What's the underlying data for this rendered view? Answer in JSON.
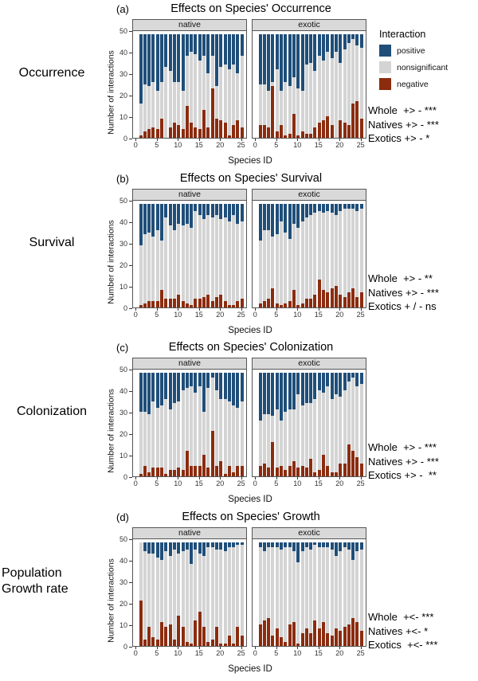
{
  "figure": {
    "facet_labels": [
      "native",
      "exotic"
    ],
    "xlabel": "Species ID",
    "ylabel": "Number of interactions"
  },
  "legend": {
    "title": "Interaction",
    "items": [
      {
        "label": "positive",
        "color": "#1f4e79"
      },
      {
        "label": "nonsignificant",
        "color": "#d4d4d4"
      },
      {
        "label": "negative",
        "color": "#8b2c0f"
      }
    ]
  },
  "panels": [
    {
      "tag": "(a)",
      "title": "Effects on Species' Occurrence",
      "row_label": "Occurrence",
      "annotations": [
        "Whole  +> - ***",
        "Natives +> - ***",
        "Exotics +> - *"
      ]
    },
    {
      "tag": "(b)",
      "title": "Effects on Species' Survival",
      "row_label": "Survival",
      "annotations": [
        "Whole  +> - **",
        "Natives +> - ***",
        "Exotics + / - ns"
      ]
    },
    {
      "tag": "(c)",
      "title": "Effects on Species' Colonization",
      "row_label": "Colonization",
      "annotations": [
        "Whole  +> - ***",
        "Natives +> - ***",
        "Exotics +> -  **"
      ]
    },
    {
      "tag": "(d)",
      "title": "Effects on Species' Growth",
      "row_label": "Population Growth rate",
      "annotations": [
        "Whole  +<- ***",
        "Natives +<- *",
        "Exotics  +<- ***"
      ]
    }
  ],
  "chart_data": [
    {
      "type": "bar",
      "subtype": "stacked",
      "panel": "a",
      "title": "Effects on Species' Occurrence",
      "xlabel": "Species ID",
      "ylabel": "Number of interactions",
      "ylim": [
        0,
        50
      ],
      "yticks": [
        0,
        10,
        20,
        30,
        40,
        50
      ],
      "xticks": [
        0,
        5,
        10,
        15,
        20,
        25
      ],
      "species_ids": "1-25",
      "total_per_bar": 48,
      "stack_order_bottom_to_top": [
        "negative",
        "nonsignificant",
        "positive"
      ],
      "facets": {
        "native": {
          "negative": [
            1,
            3,
            4,
            5,
            4,
            9,
            0,
            5,
            7,
            6,
            4,
            15,
            7,
            5,
            4,
            13,
            5,
            23,
            9,
            8,
            7,
            1,
            6,
            8,
            5
          ],
          "positive": [
            32,
            23,
            24,
            22,
            26,
            22,
            15,
            17,
            22,
            22,
            26,
            10,
            8,
            9,
            12,
            10,
            18,
            10,
            24,
            15,
            14,
            16,
            14,
            18,
            10
          ]
        },
        "exotic": {
          "negative": [
            6,
            6,
            5,
            24,
            3,
            6,
            1,
            2,
            11,
            1,
            3,
            2,
            2,
            5,
            7,
            8,
            10,
            6,
            0,
            8,
            7,
            6,
            16,
            17,
            9
          ],
          "positive": [
            23,
            23,
            26,
            22,
            16,
            26,
            22,
            24,
            20,
            25,
            26,
            14,
            13,
            17,
            10,
            12,
            8,
            11,
            8,
            13,
            7,
            4,
            2,
            5,
            6
          ]
        }
      }
    },
    {
      "type": "bar",
      "subtype": "stacked",
      "panel": "b",
      "title": "Effects on Species' Survival",
      "xlabel": "Species ID",
      "ylabel": "Number of interactions",
      "ylim": [
        0,
        50
      ],
      "yticks": [
        0,
        10,
        20,
        30,
        40,
        50
      ],
      "xticks": [
        0,
        5,
        10,
        15,
        20,
        25
      ],
      "species_ids": "1-25",
      "total_per_bar": 48,
      "stack_order_bottom_to_top": [
        "negative",
        "nonsignificant",
        "positive"
      ],
      "facets": {
        "native": {
          "negative": [
            1,
            2,
            3,
            3,
            3,
            8,
            4,
            4,
            4,
            6,
            3,
            2,
            1,
            4,
            4,
            5,
            6,
            3,
            5,
            6,
            3,
            1,
            1,
            3,
            4
          ],
          "positive": [
            19,
            14,
            13,
            15,
            12,
            17,
            6,
            10,
            12,
            9,
            10,
            9,
            11,
            3,
            5,
            7,
            5,
            6,
            5,
            7,
            6,
            8,
            5,
            9,
            8
          ]
        },
        "exotic": {
          "negative": [
            2,
            3,
            4,
            9,
            2,
            1,
            2,
            3,
            8,
            1,
            2,
            4,
            4,
            6,
            13,
            8,
            7,
            9,
            10,
            6,
            5,
            7,
            9,
            5,
            7
          ],
          "positive": [
            17,
            12,
            12,
            15,
            14,
            8,
            13,
            16,
            9,
            11,
            8,
            6,
            5,
            4,
            3,
            4,
            3,
            4,
            5,
            3,
            2,
            2,
            2,
            3,
            2
          ]
        }
      }
    },
    {
      "type": "bar",
      "subtype": "stacked",
      "panel": "c",
      "title": "Effects on Species' Colonization",
      "xlabel": "Species ID",
      "ylabel": "Number of interactions",
      "ylim": [
        0,
        50
      ],
      "yticks": [
        0,
        10,
        20,
        30,
        40,
        50
      ],
      "xticks": [
        0,
        5,
        10,
        15,
        20,
        25
      ],
      "species_ids": "1-25",
      "total_per_bar": 48,
      "stack_order_bottom_to_top": [
        "negative",
        "nonsignificant",
        "positive"
      ],
      "facets": {
        "native": {
          "negative": [
            1,
            5,
            2,
            4,
            4,
            4,
            1,
            3,
            3,
            4,
            3,
            12,
            5,
            5,
            5,
            10,
            4,
            21,
            5,
            7,
            1,
            5,
            2,
            5,
            5
          ],
          "positive": [
            18,
            18,
            19,
            13,
            16,
            15,
            12,
            17,
            14,
            13,
            8,
            7,
            6,
            9,
            6,
            18,
            7,
            2,
            8,
            12,
            12,
            13,
            15,
            16,
            13
          ]
        },
        "exotic": {
          "negative": [
            5,
            6,
            4,
            16,
            4,
            5,
            3,
            5,
            7,
            4,
            5,
            4,
            8,
            2,
            3,
            10,
            5,
            2,
            2,
            6,
            6,
            15,
            12,
            9,
            6
          ],
          "positive": [
            22,
            19,
            19,
            20,
            17,
            22,
            18,
            17,
            17,
            10,
            15,
            14,
            14,
            12,
            8,
            9,
            6,
            12,
            10,
            11,
            8,
            4,
            2,
            6,
            5
          ]
        }
      }
    },
    {
      "type": "bar",
      "subtype": "stacked",
      "panel": "d",
      "title": "Effects on Species' Growth",
      "xlabel": "Species ID",
      "ylabel": "Number of interactions",
      "ylim": [
        0,
        50
      ],
      "yticks": [
        0,
        10,
        20,
        30,
        40,
        50
      ],
      "xticks": [
        0,
        5,
        10,
        15,
        20,
        25
      ],
      "species_ids": "1-25",
      "total_per_bar": 48,
      "stack_order_bottom_to_top": [
        "negative",
        "nonsignificant",
        "positive"
      ],
      "facets": {
        "native": {
          "negative": [
            21,
            3,
            9,
            4,
            3,
            11,
            9,
            10,
            3,
            14,
            9,
            2,
            1,
            12,
            16,
            9,
            2,
            3,
            9,
            1,
            1,
            5,
            1,
            9,
            5
          ],
          "positive": [
            0,
            4,
            5,
            5,
            7,
            8,
            4,
            6,
            3,
            5,
            4,
            3,
            10,
            3,
            5,
            6,
            2,
            2,
            3,
            3,
            4,
            2,
            2,
            1,
            1
          ]
        },
        "exotic": {
          "negative": [
            10,
            12,
            13,
            5,
            8,
            4,
            2,
            10,
            11,
            1,
            6,
            8,
            6,
            12,
            8,
            11,
            6,
            5,
            8,
            7,
            9,
            10,
            13,
            11,
            7
          ],
          "positive": [
            2,
            4,
            2,
            2,
            2,
            3,
            2,
            2,
            4,
            9,
            4,
            2,
            3,
            1,
            2,
            2,
            2,
            3,
            6,
            4,
            2,
            3,
            8,
            4,
            3
          ]
        }
      }
    }
  ]
}
